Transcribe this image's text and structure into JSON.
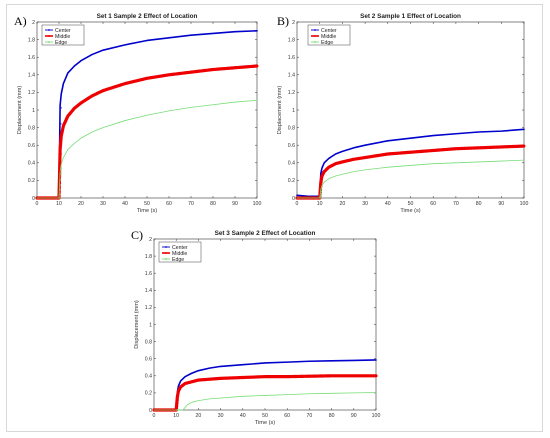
{
  "panel_labels": [
    "A)",
    "B)",
    "C)"
  ],
  "colors": {
    "center": "#0000cc",
    "middle": "#ee0000",
    "edge": "#77dd77",
    "axis": "#333333"
  },
  "chart_data": [
    {
      "type": "line",
      "title": "Set 1 Sample 2 Effect of Location",
      "xlabel": "Time (s)",
      "ylabel": "Displacement (mm)",
      "xlim": [
        0,
        100
      ],
      "ylim": [
        0,
        2
      ],
      "xticks": [
        "0",
        "10",
        "20",
        "30",
        "40",
        "50",
        "60",
        "70",
        "80",
        "90",
        "100"
      ],
      "yticks": [
        "0",
        "0.2",
        "0.4",
        "0.6",
        "0.8",
        "1",
        "1.2",
        "1.4",
        "1.6",
        "1.8",
        "2"
      ],
      "legend": [
        "Center",
        "Middle",
        "Edge"
      ],
      "legend_position": "top-left",
      "series": [
        {
          "name": "Center",
          "x": [
            0,
            10,
            10.5,
            11,
            12,
            14,
            17,
            20,
            25,
            30,
            40,
            50,
            60,
            70,
            80,
            90,
            100
          ],
          "y": [
            0,
            0,
            1.05,
            1.18,
            1.3,
            1.42,
            1.5,
            1.56,
            1.63,
            1.68,
            1.74,
            1.79,
            1.82,
            1.85,
            1.87,
            1.89,
            1.9
          ]
        },
        {
          "name": "Middle",
          "x": [
            0,
            10,
            10.5,
            11,
            12,
            14,
            17,
            20,
            25,
            30,
            40,
            50,
            60,
            70,
            80,
            90,
            100
          ],
          "y": [
            0,
            0,
            0.55,
            0.7,
            0.82,
            0.93,
            1.02,
            1.08,
            1.16,
            1.22,
            1.3,
            1.36,
            1.4,
            1.43,
            1.46,
            1.48,
            1.5
          ]
        },
        {
          "name": "Edge",
          "x": [
            0,
            10,
            10.5,
            11,
            12,
            14,
            17,
            20,
            25,
            30,
            40,
            50,
            60,
            70,
            80,
            90,
            100
          ],
          "y": [
            0,
            0,
            0.3,
            0.38,
            0.46,
            0.55,
            0.62,
            0.68,
            0.75,
            0.8,
            0.88,
            0.94,
            0.99,
            1.03,
            1.06,
            1.09,
            1.11
          ]
        }
      ]
    },
    {
      "type": "line",
      "title": "Set 2 Sample 1 Effect of Location",
      "xlabel": "Time (s)",
      "ylabel": "Displacement (mm)",
      "xlim": [
        0,
        100
      ],
      "ylim": [
        0,
        2
      ],
      "xticks": [
        "0",
        "10",
        "20",
        "30",
        "40",
        "50",
        "60",
        "70",
        "80",
        "90",
        "100"
      ],
      "yticks": [
        "0",
        "0.2",
        "0.4",
        "0.6",
        "0.8",
        "1",
        "1.2",
        "1.4",
        "1.6",
        "1.8",
        "2"
      ],
      "legend": [
        "Center",
        "Middle",
        "Edge"
      ],
      "legend_position": "top-right",
      "series": [
        {
          "name": "Center",
          "x": [
            0,
            5,
            10,
            10.5,
            11,
            12,
            14,
            17,
            20,
            25,
            30,
            40,
            50,
            60,
            70,
            80,
            90,
            100
          ],
          "y": [
            0.03,
            0.02,
            0.02,
            0.28,
            0.34,
            0.4,
            0.45,
            0.5,
            0.53,
            0.57,
            0.6,
            0.65,
            0.68,
            0.71,
            0.73,
            0.75,
            0.76,
            0.78
          ]
        },
        {
          "name": "Middle",
          "x": [
            0,
            10,
            10.5,
            11,
            12,
            14,
            17,
            20,
            25,
            30,
            40,
            50,
            60,
            70,
            80,
            90,
            100
          ],
          "y": [
            0,
            0,
            0.18,
            0.25,
            0.3,
            0.35,
            0.39,
            0.41,
            0.44,
            0.46,
            0.5,
            0.52,
            0.54,
            0.56,
            0.57,
            0.58,
            0.59
          ]
        },
        {
          "name": "Edge",
          "x": [
            0,
            10,
            10.5,
            11,
            12,
            14,
            17,
            20,
            25,
            30,
            40,
            50,
            60,
            70,
            80,
            90,
            100
          ],
          "y": [
            0,
            0,
            0.1,
            0.14,
            0.18,
            0.22,
            0.25,
            0.27,
            0.3,
            0.32,
            0.35,
            0.37,
            0.39,
            0.4,
            0.41,
            0.42,
            0.43
          ]
        }
      ]
    },
    {
      "type": "line",
      "title": "Set 3 Sample 2 Effect of Location",
      "xlabel": "Time (s)",
      "ylabel": "Displacement (mm)",
      "xlim": [
        0,
        100
      ],
      "ylim": [
        0,
        2
      ],
      "xticks": [
        "0",
        "10",
        "20",
        "30",
        "40",
        "50",
        "60",
        "70",
        "80",
        "90",
        "100"
      ],
      "yticks": [
        "0",
        "0.2",
        "0.4",
        "0.6",
        "0.8",
        "1",
        "1.2",
        "1.4",
        "1.6",
        "1.8",
        "2"
      ],
      "legend": [
        "Center",
        "Middle",
        "Edge"
      ],
      "legend_position": "top-left",
      "series": [
        {
          "name": "Center",
          "x": [
            0,
            10,
            10.5,
            11,
            12,
            14,
            17,
            20,
            25,
            30,
            40,
            50,
            60,
            70,
            80,
            90,
            100
          ],
          "y": [
            0,
            0,
            0.2,
            0.28,
            0.34,
            0.39,
            0.43,
            0.46,
            0.49,
            0.51,
            0.53,
            0.55,
            0.56,
            0.57,
            0.575,
            0.58,
            0.585
          ]
        },
        {
          "name": "Middle",
          "x": [
            0,
            10,
            10.5,
            11,
            12,
            14,
            17,
            20,
            25,
            30,
            40,
            50,
            60,
            70,
            80,
            90,
            100
          ],
          "y": [
            0,
            0,
            0.15,
            0.22,
            0.27,
            0.31,
            0.33,
            0.35,
            0.36,
            0.37,
            0.38,
            0.39,
            0.39,
            0.395,
            0.4,
            0.4,
            0.4
          ]
        },
        {
          "name": "Edge",
          "x": [
            0,
            10,
            13,
            14,
            15,
            17,
            20,
            25,
            30,
            40,
            50,
            60,
            70,
            80,
            90,
            100
          ],
          "y": [
            0,
            0,
            0,
            0.03,
            0.06,
            0.09,
            0.11,
            0.13,
            0.14,
            0.16,
            0.17,
            0.18,
            0.19,
            0.195,
            0.2,
            0.205
          ]
        }
      ]
    }
  ]
}
